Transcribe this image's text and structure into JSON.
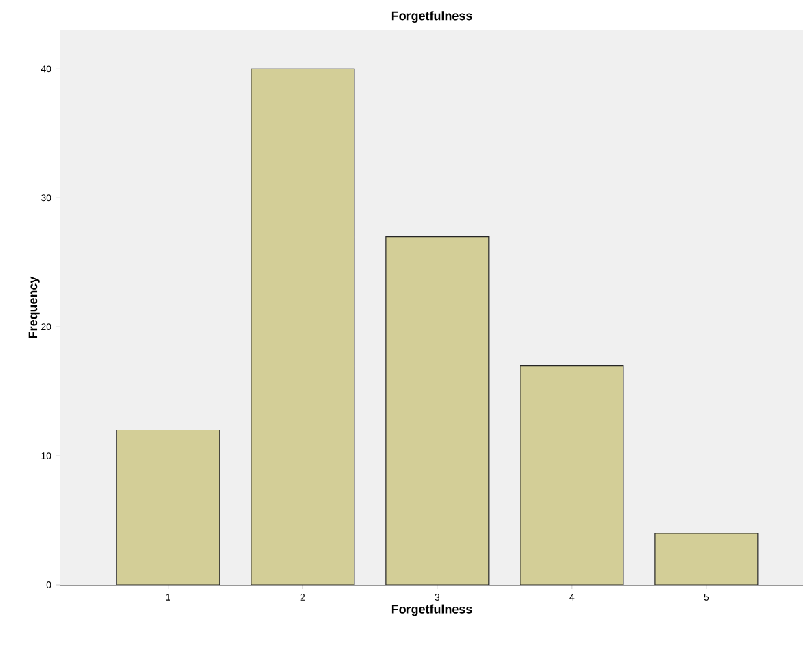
{
  "chart_data": {
    "type": "bar",
    "title": "Forgetfulness",
    "xlabel": "Forgetfulness",
    "ylabel": "Frequency",
    "categories": [
      "1",
      "2",
      "3",
      "4",
      "5"
    ],
    "values": [
      12,
      40,
      27,
      17,
      4
    ],
    "color": "#d3ce97",
    "ylim": [
      0,
      43
    ],
    "yticks": [
      0,
      10,
      20,
      30,
      40
    ]
  }
}
